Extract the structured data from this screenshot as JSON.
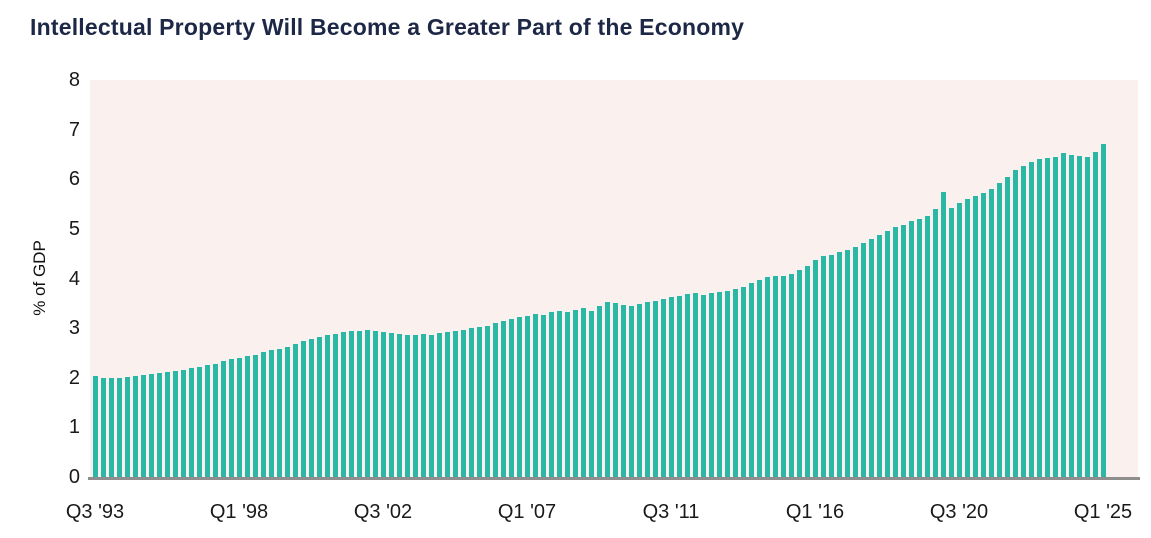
{
  "page": {
    "background_color": "#ffffff"
  },
  "chart_data": {
    "type": "bar",
    "title": "Intellectual Property Will Become a Greater Part of the Economy",
    "title_color": "#1d2746",
    "xlabel": "",
    "ylabel": "% of GDP",
    "ylim": [
      0,
      8
    ],
    "yticks": [
      0,
      1,
      2,
      3,
      4,
      5,
      6,
      7,
      8
    ],
    "xtick_labels": [
      "Q3 '93",
      "Q1 '98",
      "Q3 '02",
      "Q1 '07",
      "Q3 '11",
      "Q1 '16",
      "Q3 '20",
      "Q1 '25"
    ],
    "xtick_indices": [
      0,
      18,
      36,
      54,
      72,
      90,
      108,
      126
    ],
    "frequency": "quarterly",
    "start_quarter": "Q3 1993",
    "end_quarter": "Q1 2025",
    "grid": false,
    "legend_position": "none",
    "bar_color": "#2ab7a6",
    "plot_background_color": "#faf1ee",
    "axis_line_color": "#8e8e8e",
    "values": [
      2.03,
      2.0,
      1.99,
      2.0,
      2.02,
      2.04,
      2.06,
      2.08,
      2.1,
      2.12,
      2.14,
      2.16,
      2.19,
      2.22,
      2.25,
      2.28,
      2.33,
      2.37,
      2.4,
      2.43,
      2.46,
      2.51,
      2.55,
      2.58,
      2.63,
      2.69,
      2.74,
      2.78,
      2.82,
      2.86,
      2.89,
      2.92,
      2.94,
      2.95,
      2.97,
      2.95,
      2.93,
      2.9,
      2.88,
      2.86,
      2.86,
      2.88,
      2.87,
      2.9,
      2.92,
      2.94,
      2.96,
      3.0,
      3.03,
      3.05,
      3.1,
      3.15,
      3.18,
      3.22,
      3.25,
      3.28,
      3.26,
      3.32,
      3.35,
      3.33,
      3.36,
      3.4,
      3.35,
      3.45,
      3.52,
      3.5,
      3.47,
      3.45,
      3.48,
      3.52,
      3.55,
      3.58,
      3.62,
      3.65,
      3.68,
      3.7,
      3.67,
      3.7,
      3.72,
      3.74,
      3.78,
      3.83,
      3.9,
      3.97,
      4.03,
      4.05,
      4.05,
      4.1,
      4.17,
      4.25,
      4.38,
      4.45,
      4.48,
      4.53,
      4.57,
      4.63,
      4.72,
      4.8,
      4.88,
      4.95,
      5.03,
      5.08,
      5.15,
      5.2,
      5.26,
      5.4,
      5.75,
      5.42,
      5.52,
      5.6,
      5.66,
      5.73,
      5.8,
      5.92,
      6.05,
      6.18,
      6.26,
      6.35,
      6.4,
      6.42,
      6.45,
      6.53,
      6.48,
      6.46,
      6.44,
      6.55,
      6.71
    ]
  }
}
